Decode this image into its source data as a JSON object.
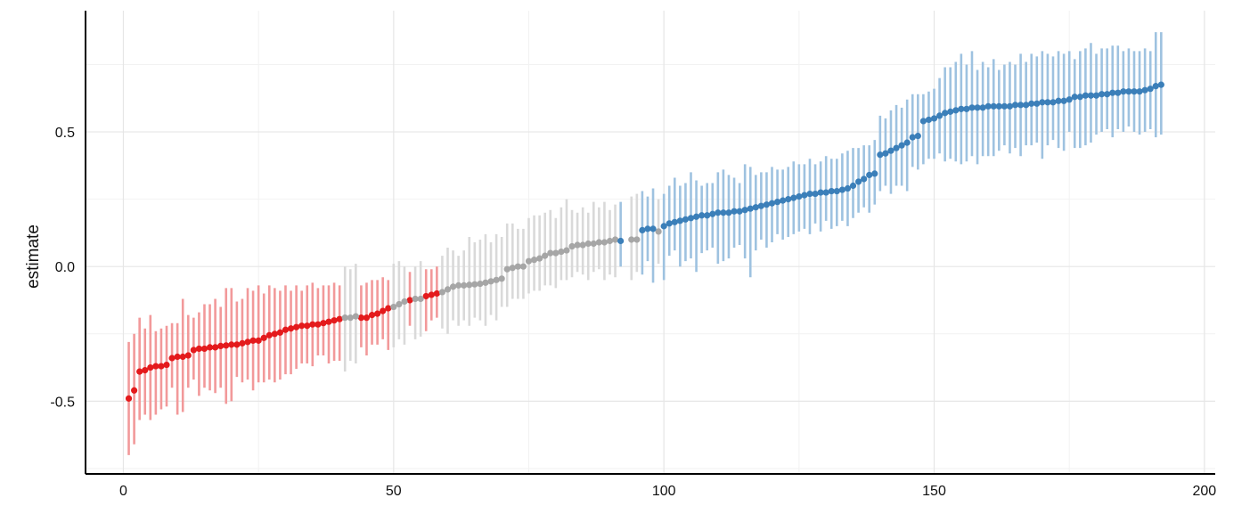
{
  "chart_data": {
    "type": "scatter",
    "title": "",
    "xlabel": "",
    "ylabel": "estimate",
    "xlim": [
      -7,
      202
    ],
    "ylim": [
      -0.77,
      0.95
    ],
    "x_ticks": [
      0,
      50,
      100,
      150,
      200
    ],
    "x_tick_labels": [
      "0",
      "50",
      "100",
      "150",
      "200"
    ],
    "y_ticks": [
      -0.5,
      0.0,
      0.5
    ],
    "y_tick_labels": [
      "-0.5",
      "0.0",
      "0.5"
    ],
    "grid": true,
    "legend": "none",
    "error_bars": "vertical intervals (lower, upper) around each estimate",
    "series": [
      {
        "color": "#e41a1c",
        "bar_color": "#f2999a",
        "x": [
          1,
          2,
          3,
          4,
          5,
          6,
          7,
          8,
          9,
          10,
          11,
          12,
          13,
          14,
          15,
          16,
          17,
          18,
          19,
          20,
          21,
          22,
          23,
          24,
          25,
          26,
          27,
          28,
          29,
          30,
          31,
          32,
          33,
          34,
          35,
          36,
          37,
          38,
          39,
          40,
          44,
          45,
          46,
          47,
          48,
          49,
          53,
          56,
          57,
          58
        ],
        "y": [
          -0.49,
          -0.46,
          -0.39,
          -0.385,
          -0.375,
          -0.37,
          -0.37,
          -0.365,
          -0.34,
          -0.335,
          -0.335,
          -0.33,
          -0.31,
          -0.305,
          -0.305,
          -0.3,
          -0.3,
          -0.295,
          -0.293,
          -0.29,
          -0.29,
          -0.285,
          -0.28,
          -0.275,
          -0.275,
          -0.265,
          -0.255,
          -0.25,
          -0.245,
          -0.235,
          -0.23,
          -0.225,
          -0.22,
          -0.22,
          -0.215,
          -0.215,
          -0.21,
          -0.205,
          -0.2,
          -0.195,
          -0.19,
          -0.19,
          -0.18,
          -0.175,
          -0.165,
          -0.155,
          -0.125,
          -0.11,
          -0.105,
          -0.1
        ],
        "lower": [
          -0.7,
          -0.66,
          -0.57,
          -0.55,
          -0.57,
          -0.55,
          -0.53,
          -0.52,
          -0.45,
          -0.55,
          -0.54,
          -0.45,
          -0.42,
          -0.48,
          -0.45,
          -0.46,
          -0.47,
          -0.45,
          -0.51,
          -0.5,
          -0.41,
          -0.43,
          -0.42,
          -0.46,
          -0.43,
          -0.43,
          -0.42,
          -0.43,
          -0.42,
          -0.4,
          -0.4,
          -0.38,
          -0.36,
          -0.36,
          -0.37,
          -0.33,
          -0.33,
          -0.36,
          -0.35,
          -0.35,
          -0.3,
          -0.33,
          -0.29,
          -0.29,
          -0.27,
          -0.31,
          -0.22,
          -0.24,
          -0.2,
          -0.19
        ],
        "upper": [
          -0.28,
          -0.25,
          -0.19,
          -0.23,
          -0.18,
          -0.24,
          -0.23,
          -0.22,
          -0.21,
          -0.21,
          -0.12,
          -0.18,
          -0.19,
          -0.17,
          -0.14,
          -0.14,
          -0.12,
          -0.15,
          -0.08,
          -0.08,
          -0.13,
          -0.12,
          -0.08,
          -0.09,
          -0.07,
          -0.1,
          -0.07,
          -0.08,
          -0.09,
          -0.07,
          -0.09,
          -0.07,
          -0.09,
          -0.07,
          -0.06,
          -0.08,
          -0.07,
          -0.07,
          -0.06,
          -0.07,
          -0.07,
          -0.06,
          -0.05,
          -0.05,
          -0.04,
          -0.05,
          -0.02,
          -0.01,
          -0.01,
          0.0
        ]
      },
      {
        "color": "#a6a6a6",
        "bar_color": "#d9d9d9",
        "x": [
          41,
          42,
          43,
          50,
          51,
          52,
          54,
          55,
          59,
          60,
          61,
          62,
          63,
          64,
          65,
          66,
          67,
          68,
          69,
          70,
          71,
          72,
          73,
          74,
          75,
          76,
          77,
          78,
          79,
          80,
          81,
          82,
          83,
          84,
          85,
          86,
          87,
          88,
          89,
          90,
          91,
          94,
          95,
          99
        ],
        "y": [
          -0.19,
          -0.19,
          -0.185,
          -0.15,
          -0.14,
          -0.13,
          -0.12,
          -0.12,
          -0.095,
          -0.085,
          -0.075,
          -0.07,
          -0.07,
          -0.068,
          -0.066,
          -0.064,
          -0.06,
          -0.055,
          -0.05,
          -0.045,
          -0.01,
          -0.005,
          0.0,
          0.0,
          0.02,
          0.025,
          0.03,
          0.04,
          0.05,
          0.05,
          0.055,
          0.06,
          0.075,
          0.08,
          0.08,
          0.085,
          0.085,
          0.09,
          0.09,
          0.095,
          0.1,
          0.1,
          0.1,
          0.13
        ],
        "lower": [
          -0.39,
          -0.35,
          -0.36,
          -0.3,
          -0.27,
          -0.29,
          -0.27,
          -0.26,
          -0.23,
          -0.25,
          -0.2,
          -0.22,
          -0.2,
          -0.22,
          -0.19,
          -0.2,
          -0.22,
          -0.18,
          -0.2,
          -0.15,
          -0.15,
          -0.12,
          -0.12,
          -0.12,
          -0.1,
          -0.09,
          -0.09,
          -0.07,
          -0.07,
          -0.08,
          -0.05,
          -0.05,
          -0.04,
          -0.02,
          -0.03,
          -0.05,
          -0.02,
          -0.01,
          -0.05,
          -0.03,
          -0.04,
          -0.05,
          -0.02,
          0.01
        ],
        "upper": [
          0.0,
          -0.01,
          0.01,
          0.01,
          0.02,
          0.0,
          0.0,
          0.02,
          0.04,
          0.07,
          0.06,
          0.04,
          0.06,
          0.11,
          0.09,
          0.1,
          0.12,
          0.09,
          0.12,
          0.11,
          0.16,
          0.16,
          0.14,
          0.14,
          0.18,
          0.19,
          0.19,
          0.2,
          0.21,
          0.18,
          0.22,
          0.25,
          0.21,
          0.2,
          0.22,
          0.2,
          0.24,
          0.22,
          0.24,
          0.21,
          0.23,
          0.26,
          0.27,
          0.25
        ]
      },
      {
        "color": "#3b7fb9",
        "bar_color": "#9ec2e0",
        "x": [
          92,
          96,
          97,
          98,
          100,
          101,
          102,
          103,
          104,
          105,
          106,
          107,
          108,
          109,
          110,
          111,
          112,
          113,
          114,
          115,
          116,
          117,
          118,
          119,
          120,
          121,
          122,
          123,
          124,
          125,
          126,
          127,
          128,
          129,
          130,
          131,
          132,
          133,
          134,
          135,
          136,
          137,
          138,
          139,
          140,
          141,
          142,
          143,
          144,
          145,
          146,
          147,
          148,
          149,
          150,
          151,
          152,
          153,
          154,
          155,
          156,
          157,
          158,
          159,
          160,
          161,
          162,
          163,
          164,
          165,
          166,
          167,
          168,
          169,
          170,
          171,
          172,
          173,
          174,
          175,
          176,
          177,
          178,
          179,
          180,
          181,
          182,
          183,
          184,
          185,
          186,
          187,
          188,
          189,
          190,
          191,
          192
        ],
        "y": [
          0.095,
          0.135,
          0.14,
          0.14,
          0.15,
          0.16,
          0.165,
          0.17,
          0.175,
          0.18,
          0.185,
          0.19,
          0.19,
          0.195,
          0.2,
          0.2,
          0.2,
          0.205,
          0.205,
          0.21,
          0.215,
          0.22,
          0.225,
          0.23,
          0.235,
          0.24,
          0.245,
          0.25,
          0.255,
          0.26,
          0.265,
          0.27,
          0.27,
          0.275,
          0.275,
          0.28,
          0.28,
          0.285,
          0.29,
          0.3,
          0.315,
          0.325,
          0.34,
          0.345,
          0.415,
          0.42,
          0.43,
          0.44,
          0.45,
          0.46,
          0.48,
          0.485,
          0.54,
          0.545,
          0.55,
          0.56,
          0.57,
          0.575,
          0.58,
          0.585,
          0.585,
          0.59,
          0.59,
          0.59,
          0.595,
          0.595,
          0.595,
          0.595,
          0.595,
          0.6,
          0.6,
          0.6,
          0.605,
          0.605,
          0.61,
          0.61,
          0.61,
          0.615,
          0.615,
          0.62,
          0.63,
          0.63,
          0.635,
          0.635,
          0.635,
          0.64,
          0.64,
          0.645,
          0.645,
          0.65,
          0.65,
          0.65,
          0.65,
          0.655,
          0.66,
          0.67,
          0.675
        ],
        "lower": [
          0.0,
          -0.03,
          0.02,
          -0.06,
          -0.05,
          0.04,
          0.06,
          0.0,
          0.02,
          0.03,
          -0.02,
          0.05,
          0.06,
          0.07,
          0.01,
          0.02,
          0.03,
          0.07,
          0.08,
          0.03,
          -0.04,
          0.06,
          0.1,
          0.07,
          0.09,
          0.12,
          0.1,
          0.11,
          0.12,
          0.13,
          0.14,
          0.12,
          0.16,
          0.13,
          0.17,
          0.14,
          0.15,
          0.17,
          0.15,
          0.18,
          0.2,
          0.22,
          0.2,
          0.23,
          0.28,
          0.3,
          0.27,
          0.3,
          0.3,
          0.28,
          0.37,
          0.36,
          0.38,
          0.4,
          0.4,
          0.42,
          0.39,
          0.4,
          0.39,
          0.38,
          0.39,
          0.41,
          0.38,
          0.41,
          0.41,
          0.41,
          0.43,
          0.45,
          0.42,
          0.44,
          0.41,
          0.45,
          0.45,
          0.46,
          0.4,
          0.45,
          0.47,
          0.44,
          0.43,
          0.5,
          0.44,
          0.44,
          0.45,
          0.46,
          0.49,
          0.5,
          0.51,
          0.48,
          0.51,
          0.5,
          0.52,
          0.5,
          0.49,
          0.5,
          0.51,
          0.48,
          0.49
        ],
        "upper": [
          0.24,
          0.28,
          0.26,
          0.29,
          0.27,
          0.3,
          0.33,
          0.3,
          0.31,
          0.35,
          0.32,
          0.3,
          0.31,
          0.31,
          0.35,
          0.36,
          0.34,
          0.33,
          0.31,
          0.38,
          0.37,
          0.34,
          0.35,
          0.35,
          0.37,
          0.36,
          0.36,
          0.37,
          0.39,
          0.38,
          0.38,
          0.4,
          0.38,
          0.39,
          0.41,
          0.4,
          0.4,
          0.42,
          0.43,
          0.44,
          0.44,
          0.45,
          0.45,
          0.47,
          0.56,
          0.55,
          0.58,
          0.6,
          0.59,
          0.62,
          0.64,
          0.64,
          0.64,
          0.65,
          0.66,
          0.7,
          0.74,
          0.74,
          0.76,
          0.79,
          0.75,
          0.8,
          0.73,
          0.76,
          0.74,
          0.77,
          0.73,
          0.75,
          0.76,
          0.75,
          0.79,
          0.76,
          0.79,
          0.78,
          0.8,
          0.79,
          0.78,
          0.8,
          0.79,
          0.8,
          0.77,
          0.8,
          0.81,
          0.83,
          0.79,
          0.81,
          0.81,
          0.82,
          0.82,
          0.8,
          0.81,
          0.8,
          0.8,
          0.81,
          0.8,
          0.87,
          0.87
        ]
      }
    ]
  }
}
